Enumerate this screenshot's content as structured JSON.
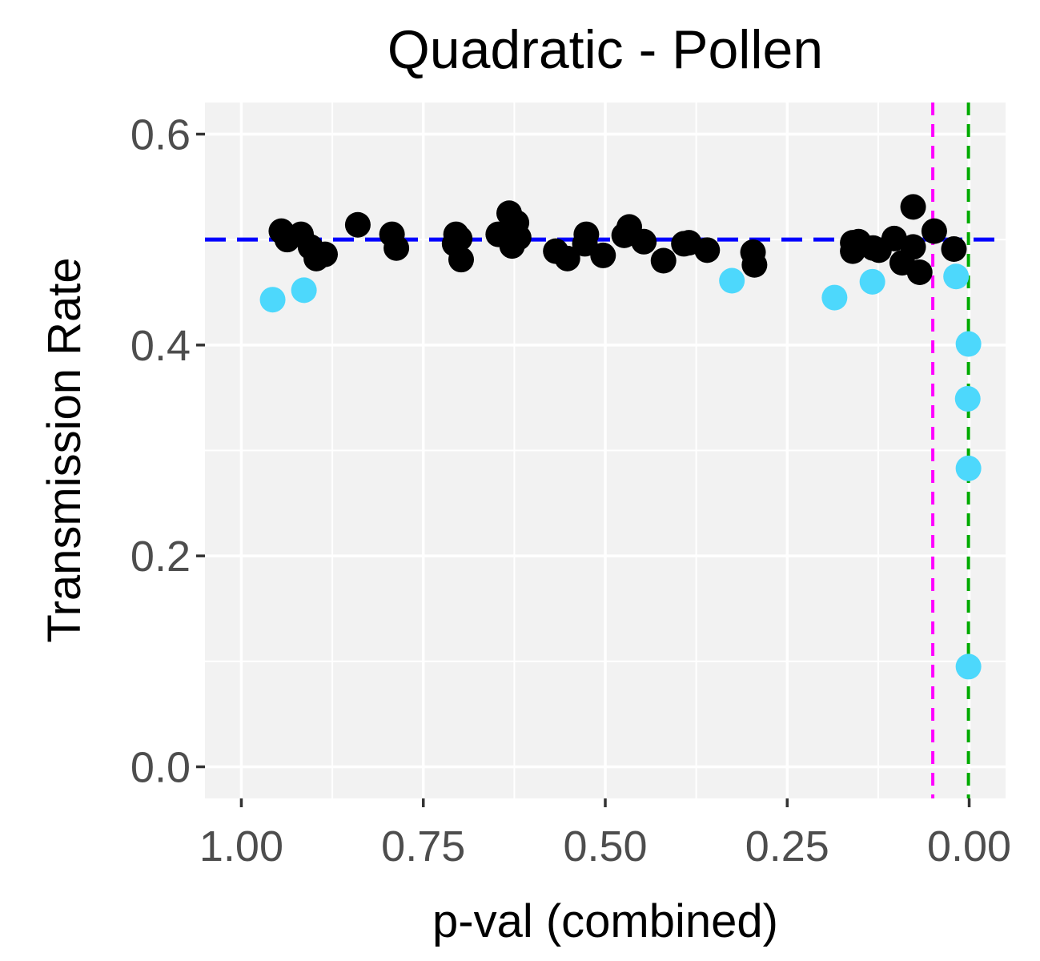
{
  "chart_data": {
    "type": "scatter",
    "title": "Quadratic - Pollen",
    "xlabel": "p-val (combined)",
    "ylabel": "Transmission Rate",
    "x_reversed": true,
    "xlim": [
      1.05,
      -0.05
    ],
    "ylim": [
      -0.03,
      0.63
    ],
    "x_ticks": [
      1.0,
      0.75,
      0.5,
      0.25,
      0.0
    ],
    "x_tick_labels": [
      "1.00",
      "0.75",
      "0.50",
      "0.25",
      "0.00"
    ],
    "y_ticks": [
      0.0,
      0.2,
      0.4,
      0.6
    ],
    "y_tick_labels": [
      "0.0",
      "0.2",
      "0.4",
      "0.6"
    ],
    "grid": true,
    "legend": "none",
    "colors": {
      "panel": "#f2f2f2",
      "grid": "#ffffff",
      "tick": "#333333",
      "black_points": "#000000",
      "cyan_points": "#4dd8fc",
      "hline": "#0000ff",
      "vline_magenta": "#ff00ff",
      "vline_green": "#00aa00"
    },
    "reference_lines": [
      {
        "orientation": "horizontal",
        "value": 0.5,
        "color": "#0000ff",
        "style": "dashed"
      },
      {
        "orientation": "vertical",
        "value": 0.05,
        "color": "#ff00ff",
        "style": "dashed"
      },
      {
        "orientation": "vertical",
        "value": 0.001,
        "color": "#00aa00",
        "style": "dashed"
      }
    ],
    "series": [
      {
        "color": "#000000",
        "points": [
          [
            0.945,
            0.508
          ],
          [
            0.937,
            0.5
          ],
          [
            0.918,
            0.505
          ],
          [
            0.905,
            0.493
          ],
          [
            0.897,
            0.482
          ],
          [
            0.885,
            0.486
          ],
          [
            0.84,
            0.514
          ],
          [
            0.793,
            0.505
          ],
          [
            0.787,
            0.492
          ],
          [
            0.705,
            0.505
          ],
          [
            0.707,
            0.496
          ],
          [
            0.7,
            0.501
          ],
          [
            0.698,
            0.481
          ],
          [
            0.647,
            0.505
          ],
          [
            0.632,
            0.525
          ],
          [
            0.628,
            0.494
          ],
          [
            0.622,
            0.516
          ],
          [
            0.619,
            0.502
          ],
          [
            0.568,
            0.489
          ],
          [
            0.552,
            0.482
          ],
          [
            0.528,
            0.496
          ],
          [
            0.526,
            0.505
          ],
          [
            0.503,
            0.485
          ],
          [
            0.474,
            0.504
          ],
          [
            0.467,
            0.512
          ],
          [
            0.447,
            0.498
          ],
          [
            0.42,
            0.48
          ],
          [
            0.392,
            0.496
          ],
          [
            0.385,
            0.497
          ],
          [
            0.36,
            0.49
          ],
          [
            0.297,
            0.488
          ],
          [
            0.295,
            0.476
          ],
          [
            0.16,
            0.497
          ],
          [
            0.16,
            0.489
          ],
          [
            0.152,
            0.498
          ],
          [
            0.132,
            0.492
          ],
          [
            0.124,
            0.49
          ],
          [
            0.103,
            0.501
          ],
          [
            0.092,
            0.478
          ],
          [
            0.077,
            0.531
          ],
          [
            0.077,
            0.493
          ],
          [
            0.068,
            0.469
          ],
          [
            0.048,
            0.508
          ],
          [
            0.021,
            0.491
          ]
        ]
      },
      {
        "color": "#4dd8fc",
        "points": [
          [
            0.957,
            0.443
          ],
          [
            0.914,
            0.452
          ],
          [
            0.326,
            0.461
          ],
          [
            0.185,
            0.445
          ],
          [
            0.133,
            0.46
          ],
          [
            0.018,
            0.465
          ],
          [
            0.001,
            0.401
          ],
          [
            0.002,
            0.349
          ],
          [
            0.001,
            0.283
          ],
          [
            0.001,
            0.095
          ]
        ]
      }
    ]
  }
}
